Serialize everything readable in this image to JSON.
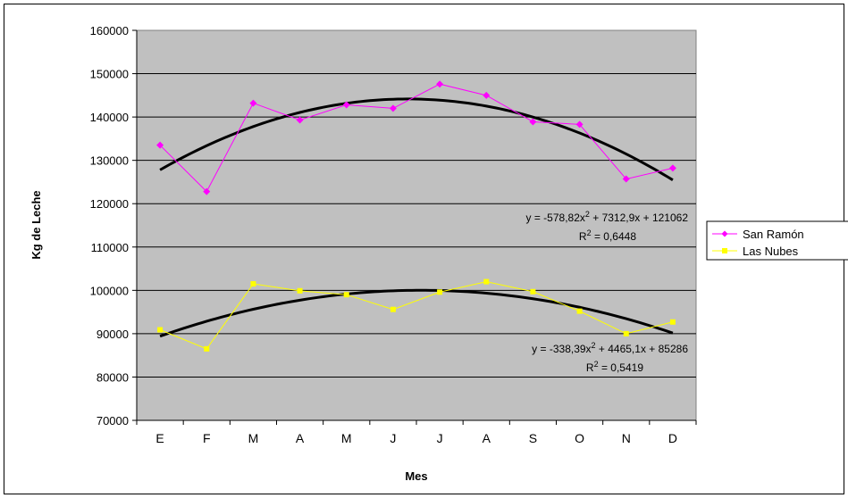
{
  "chart_data": {
    "type": "line",
    "xlabel": "Mes",
    "ylabel": "Kg de Leche",
    "categories": [
      "E",
      "F",
      "M",
      "A",
      "M",
      "J",
      "J",
      "A",
      "S",
      "O",
      "N",
      "D"
    ],
    "ylim": [
      70000,
      160000
    ],
    "y_ticks": [
      70000,
      80000,
      90000,
      100000,
      110000,
      120000,
      130000,
      140000,
      150000,
      160000
    ],
    "grid": "horizontal",
    "plot_background": "#c0c0c0",
    "legend_position": "right",
    "series": [
      {
        "name": "San Ramón",
        "color": "#ff00ff",
        "marker": "diamond",
        "values": [
          133500,
          122800,
          143200,
          139300,
          142800,
          142000,
          147600,
          145000,
          138900,
          138300,
          125700,
          128200
        ]
      },
      {
        "name": "Las Nubes",
        "color": "#ffff00",
        "marker": "square",
        "values": [
          90900,
          86500,
          101500,
          99900,
          99000,
          95600,
          99600,
          102000,
          99700,
          95200,
          90000,
          92700
        ]
      }
    ],
    "trendlines": [
      {
        "series": "San Ramón",
        "type": "polynomial-2",
        "coefficients": [
          -578.82,
          7312.9,
          121062
        ],
        "color": "#000000",
        "equation_label": "y = -578,82x",
        "equation_exponent": "2",
        "equation_rest": " + 7312,9x + 121062",
        "r2_label": "R",
        "r2_exponent": "2",
        "r2_value": " = 0,6448"
      },
      {
        "series": "Las Nubes",
        "type": "polynomial-2",
        "coefficients": [
          -338.39,
          4465.1,
          85286
        ],
        "color": "#000000",
        "equation_label": "y = -338,39x",
        "equation_exponent": "2",
        "equation_rest": " + 4465,1x + 85286",
        "r2_label": "R",
        "r2_exponent": "2",
        "r2_value": " = 0,5419"
      }
    ]
  }
}
